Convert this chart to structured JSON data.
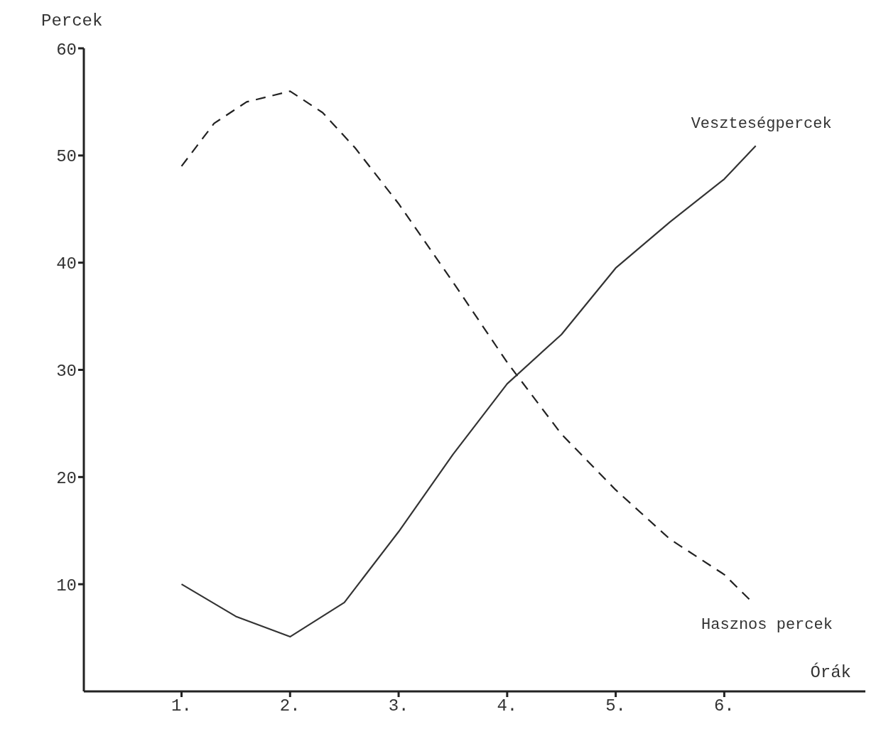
{
  "chart_data": {
    "type": "line",
    "xlabel": "Órák",
    "ylabel": "Percek",
    "xlim": [
      0.1,
      7.3
    ],
    "ylim": [
      0,
      60
    ],
    "xticks": [
      {
        "value": 1,
        "label": "1."
      },
      {
        "value": 2,
        "label": "2."
      },
      {
        "value": 3,
        "label": "3."
      },
      {
        "value": 4,
        "label": "4."
      },
      {
        "value": 5,
        "label": "5."
      },
      {
        "value": 6,
        "label": "6."
      }
    ],
    "yticks": [
      10,
      20,
      30,
      40,
      50,
      60
    ],
    "grid": false,
    "marker": "none",
    "series": [
      {
        "name": "Hasznos percek",
        "color": "#222222",
        "line_style": "dashed",
        "x": [
          1,
          1.3,
          1.6,
          2,
          2.3,
          2.6,
          3,
          3.5,
          4,
          4.5,
          5,
          5.5,
          6,
          6.23
        ],
        "values": [
          49,
          53,
          55,
          56,
          54,
          50.7,
          45.5,
          38.2,
          30.7,
          24,
          18.8,
          14.2,
          10.9,
          8.6
        ]
      },
      {
        "name": "Veszteségpercek",
        "color": "#333333",
        "line_style": "solid",
        "x": [
          1,
          1.5,
          2,
          2.5,
          3,
          3.5,
          4,
          4.5,
          5,
          5.5,
          6,
          6.29
        ],
        "values": [
          10,
          7,
          5.1,
          8.3,
          14.9,
          22.1,
          28.7,
          33.3,
          39.5,
          43.8,
          47.8,
          50.9
        ]
      }
    ]
  }
}
